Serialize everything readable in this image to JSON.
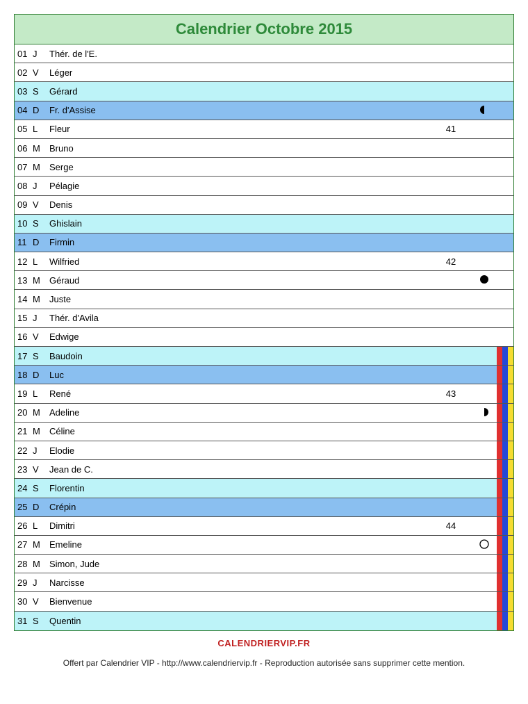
{
  "title": "Calendrier Octobre 2015",
  "colors": {
    "header_bg": "#c4eac7",
    "header_text": "#2e8a3a",
    "saturday_bg": "#bdf3f8",
    "sunday_bg": "#8abff0",
    "white_bg": "#ffffff",
    "stripe_red": "#e03030",
    "stripe_blue": "#2548d8",
    "stripe_yellow": "#f5dc30",
    "brand_color": "#c02020"
  },
  "days": [
    {
      "num": "01",
      "abbr": "J",
      "saint": "Thér. de l'E.",
      "bg": "white_bg",
      "week": "",
      "moon": "",
      "stripes": []
    },
    {
      "num": "02",
      "abbr": "V",
      "saint": "Léger",
      "bg": "white_bg",
      "week": "",
      "moon": "",
      "stripes": []
    },
    {
      "num": "03",
      "abbr": "S",
      "saint": "Gérard",
      "bg": "saturday_bg",
      "week": "",
      "moon": "",
      "stripes": []
    },
    {
      "num": "04",
      "abbr": "D",
      "saint": "Fr. d'Assise",
      "bg": "sunday_bg",
      "week": "",
      "moon": "last-quarter",
      "stripes": []
    },
    {
      "num": "05",
      "abbr": "L",
      "saint": "Fleur",
      "bg": "white_bg",
      "week": "41",
      "moon": "",
      "stripes": []
    },
    {
      "num": "06",
      "abbr": "M",
      "saint": "Bruno",
      "bg": "white_bg",
      "week": "",
      "moon": "",
      "stripes": []
    },
    {
      "num": "07",
      "abbr": "M",
      "saint": "Serge",
      "bg": "white_bg",
      "week": "",
      "moon": "",
      "stripes": []
    },
    {
      "num": "08",
      "abbr": "J",
      "saint": "Pélagie",
      "bg": "white_bg",
      "week": "",
      "moon": "",
      "stripes": []
    },
    {
      "num": "09",
      "abbr": "V",
      "saint": "Denis",
      "bg": "white_bg",
      "week": "",
      "moon": "",
      "stripes": []
    },
    {
      "num": "10",
      "abbr": "S",
      "saint": "Ghislain",
      "bg": "saturday_bg",
      "week": "",
      "moon": "",
      "stripes": []
    },
    {
      "num": "11",
      "abbr": "D",
      "saint": "Firmin",
      "bg": "sunday_bg",
      "week": "",
      "moon": "",
      "stripes": []
    },
    {
      "num": "12",
      "abbr": "L",
      "saint": "Wilfried",
      "bg": "white_bg",
      "week": "42",
      "moon": "",
      "stripes": []
    },
    {
      "num": "13",
      "abbr": "M",
      "saint": "Géraud",
      "bg": "white_bg",
      "week": "",
      "moon": "new",
      "stripes": []
    },
    {
      "num": "14",
      "abbr": "M",
      "saint": "Juste",
      "bg": "white_bg",
      "week": "",
      "moon": "",
      "stripes": []
    },
    {
      "num": "15",
      "abbr": "J",
      "saint": "Thér. d'Avila",
      "bg": "white_bg",
      "week": "",
      "moon": "",
      "stripes": []
    },
    {
      "num": "16",
      "abbr": "V",
      "saint": "Edwige",
      "bg": "white_bg",
      "week": "",
      "moon": "",
      "stripes": []
    },
    {
      "num": "17",
      "abbr": "S",
      "saint": "Baudoin",
      "bg": "saturday_bg",
      "week": "",
      "moon": "",
      "stripes": [
        "stripe_red",
        "stripe_blue",
        "stripe_yellow"
      ]
    },
    {
      "num": "18",
      "abbr": "D",
      "saint": "Luc",
      "bg": "sunday_bg",
      "week": "",
      "moon": "",
      "stripes": [
        "stripe_red",
        "stripe_blue",
        "stripe_yellow"
      ]
    },
    {
      "num": "19",
      "abbr": "L",
      "saint": "René",
      "bg": "white_bg",
      "week": "43",
      "moon": "",
      "stripes": [
        "stripe_red",
        "stripe_blue",
        "stripe_yellow"
      ]
    },
    {
      "num": "20",
      "abbr": "M",
      "saint": "Adeline",
      "bg": "white_bg",
      "week": "",
      "moon": "first-quarter",
      "stripes": [
        "stripe_red",
        "stripe_blue",
        "stripe_yellow"
      ]
    },
    {
      "num": "21",
      "abbr": "M",
      "saint": "Céline",
      "bg": "white_bg",
      "week": "",
      "moon": "",
      "stripes": [
        "stripe_red",
        "stripe_blue",
        "stripe_yellow"
      ]
    },
    {
      "num": "22",
      "abbr": "J",
      "saint": "Elodie",
      "bg": "white_bg",
      "week": "",
      "moon": "",
      "stripes": [
        "stripe_red",
        "stripe_blue",
        "stripe_yellow"
      ]
    },
    {
      "num": "23",
      "abbr": "V",
      "saint": "Jean de C.",
      "bg": "white_bg",
      "week": "",
      "moon": "",
      "stripes": [
        "stripe_red",
        "stripe_blue",
        "stripe_yellow"
      ]
    },
    {
      "num": "24",
      "abbr": "S",
      "saint": "Florentin",
      "bg": "saturday_bg",
      "week": "",
      "moon": "",
      "stripes": [
        "stripe_red",
        "stripe_blue",
        "stripe_yellow"
      ]
    },
    {
      "num": "25",
      "abbr": "D",
      "saint": "Crépin",
      "bg": "sunday_bg",
      "week": "",
      "moon": "",
      "stripes": [
        "stripe_red",
        "stripe_blue",
        "stripe_yellow"
      ]
    },
    {
      "num": "26",
      "abbr": "L",
      "saint": "Dimitri",
      "bg": "white_bg",
      "week": "44",
      "moon": "",
      "stripes": [
        "stripe_red",
        "stripe_blue",
        "stripe_yellow"
      ]
    },
    {
      "num": "27",
      "abbr": "M",
      "saint": "Emeline",
      "bg": "white_bg",
      "week": "",
      "moon": "full",
      "stripes": [
        "stripe_red",
        "stripe_blue",
        "stripe_yellow"
      ]
    },
    {
      "num": "28",
      "abbr": "M",
      "saint": "Simon, Jude",
      "bg": "white_bg",
      "week": "",
      "moon": "",
      "stripes": [
        "stripe_red",
        "stripe_blue",
        "stripe_yellow"
      ]
    },
    {
      "num": "29",
      "abbr": "J",
      "saint": "Narcisse",
      "bg": "white_bg",
      "week": "",
      "moon": "",
      "stripes": [
        "stripe_red",
        "stripe_blue",
        "stripe_yellow"
      ]
    },
    {
      "num": "30",
      "abbr": "V",
      "saint": "Bienvenue",
      "bg": "white_bg",
      "week": "",
      "moon": "",
      "stripes": [
        "stripe_red",
        "stripe_blue",
        "stripe_yellow"
      ]
    },
    {
      "num": "31",
      "abbr": "S",
      "saint": "Quentin",
      "bg": "saturday_bg",
      "week": "",
      "moon": "",
      "stripes": [
        "stripe_red",
        "stripe_blue",
        "stripe_yellow"
      ]
    }
  ],
  "footer_brand": "CALENDRIERVIP.FR",
  "footer_note": "Offert par Calendrier VIP - http://www.calendriervip.fr - Reproduction autorisée sans supprimer cette mention."
}
